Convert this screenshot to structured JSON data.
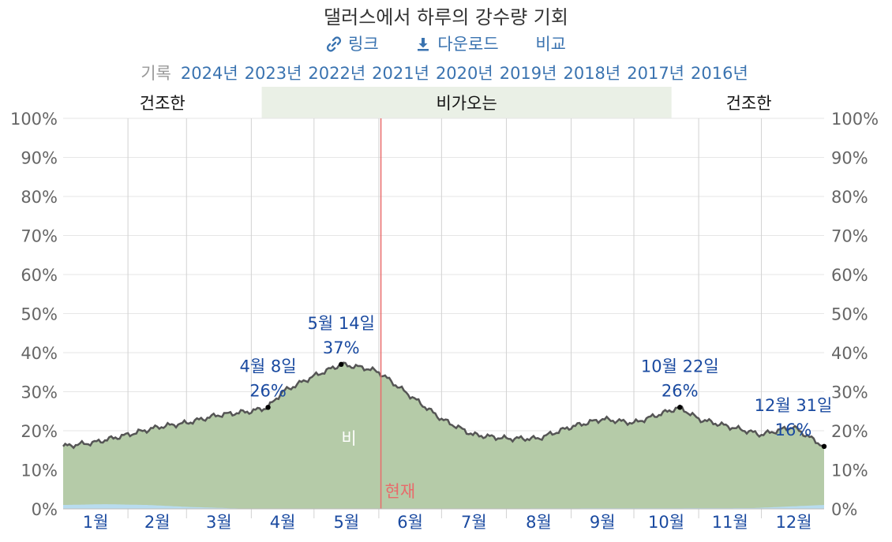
{
  "title": "댈러스에서 하루의 강수량 기회",
  "actions": {
    "link_label": "링크",
    "download_label": "다운로드",
    "compare_label": "비교"
  },
  "history": {
    "label": "기록",
    "years": [
      "2024년",
      "2023년",
      "2022년",
      "2021년",
      "2020년",
      "2019년",
      "2018년",
      "2017년",
      "2016년"
    ]
  },
  "colors": {
    "rain_fill": "#b5cba8",
    "wet_band": "#eaf0e6",
    "now_line": "#e86b6b",
    "line": "#555555",
    "label_blue": "#1a4aa0",
    "snow": "#b8dcef"
  },
  "chart_data": {
    "type": "area",
    "seasons": [
      {
        "label": "건조한",
        "kind": "dry",
        "start_day": 0,
        "end_day": 95
      },
      {
        "label": "비가오는",
        "kind": "wet",
        "start_day": 95,
        "end_day": 291
      },
      {
        "label": "건조한",
        "kind": "dry",
        "start_day": 291,
        "end_day": 365
      }
    ],
    "x_tick_labels": [
      "1월",
      "2월",
      "3월",
      "4월",
      "5월",
      "6월",
      "7월",
      "8월",
      "9월",
      "10월",
      "11월",
      "12월"
    ],
    "y_ticks": [
      "0%",
      "10%",
      "20%",
      "30%",
      "40%",
      "50%",
      "60%",
      "70%",
      "80%",
      "90%",
      "100%"
    ],
    "ylim": [
      0,
      100
    ],
    "series": [
      {
        "name": "비",
        "days": [
          0,
          15,
          31,
          46,
          59,
          74,
          90,
          98,
          105,
          120,
          133,
          145,
          151,
          166,
          181,
          196,
          212,
          227,
          243,
          258,
          273,
          284,
          295,
          304,
          319,
          334,
          349,
          364
        ],
        "values": [
          16,
          17,
          19,
          21,
          22,
          24,
          25,
          26,
          30,
          34,
          37,
          36,
          35,
          29,
          23,
          19,
          18,
          18,
          21,
          23,
          22,
          24,
          26,
          23,
          21,
          19,
          21,
          16
        ]
      },
      {
        "name": "snow",
        "days": [
          0,
          20,
          40,
          60,
          90,
          330,
          364
        ],
        "values": [
          1,
          1.2,
          1,
          0.5,
          0,
          0.2,
          1
        ]
      }
    ],
    "series_label": "비",
    "now_label": "현재",
    "now_day": 152,
    "annotations": [
      {
        "date": "4월 8일",
        "value_label": "26%",
        "day": 98,
        "value": 26
      },
      {
        "date": "5월 14일",
        "value_label": "37%",
        "day": 133,
        "value": 37
      },
      {
        "date": "10월 22일",
        "value_label": "26%",
        "day": 295,
        "value": 26
      },
      {
        "date": "12월 31일",
        "value_label": "16%",
        "day": 364,
        "value": 16
      }
    ]
  }
}
